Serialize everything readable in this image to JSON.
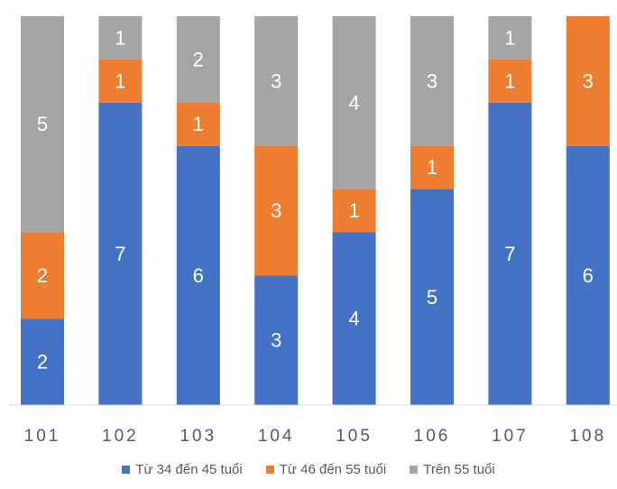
{
  "chart_data": {
    "type": "bar",
    "stacked": true,
    "categories": [
      "101",
      "102",
      "103",
      "104",
      "105",
      "106",
      "107",
      "108"
    ],
    "series": [
      {
        "name": "Từ 34 đến 45 tuổi",
        "color": "#4472C4",
        "values": [
          2,
          7,
          6,
          3,
          4,
          5,
          7,
          6
        ]
      },
      {
        "name": "Từ 46 đến 55 tuổi",
        "color": "#ED7D31",
        "values": [
          2,
          1,
          1,
          3,
          1,
          1,
          1,
          3
        ]
      },
      {
        "name": "Trên 55 tuổi",
        "color": "#A5A5A5",
        "values": [
          5,
          1,
          2,
          3,
          4,
          3,
          1,
          0
        ]
      }
    ],
    "ylim": [
      0,
      9
    ],
    "grid": false,
    "legend": "bottom-center",
    "data_labels": true
  }
}
